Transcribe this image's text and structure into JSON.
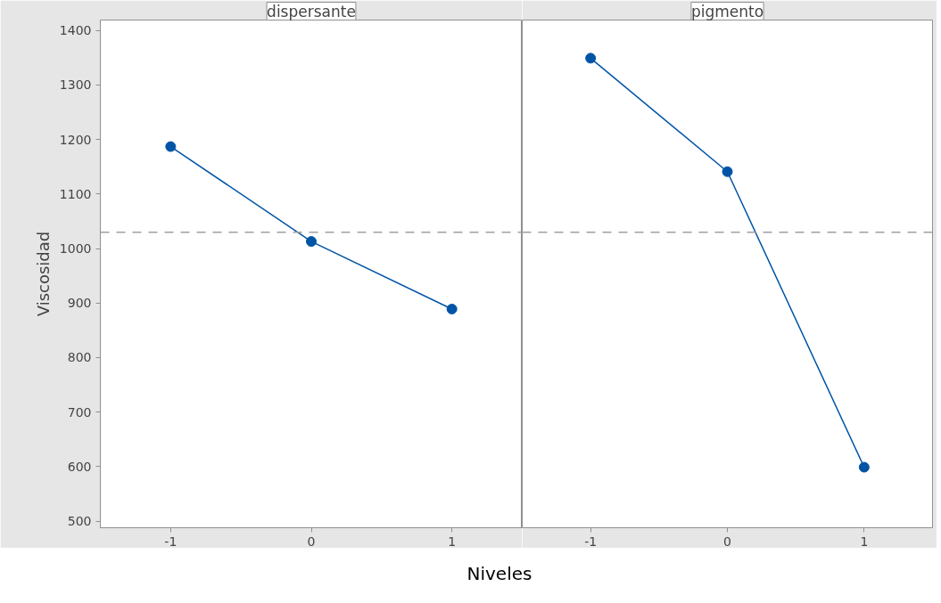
{
  "chart_data": [
    {
      "type": "line",
      "title": "dispersante",
      "ylabel": "Viscosidad",
      "xlabel": "Niveles",
      "x": [
        -1,
        0,
        1
      ],
      "series": [
        {
          "color": "#0054a6",
          "values": [
            1187,
            1013,
            889
          ]
        }
      ],
      "xlim": [
        -1.5,
        1.5
      ],
      "xticks": [
        -1,
        0,
        1
      ],
      "ylim": [
        488,
        1419
      ],
      "yticks": [
        500,
        600,
        700,
        800,
        900,
        1000,
        1100,
        1200,
        1300,
        1400
      ],
      "ref_lines": [
        {
          "axis": "y",
          "value": 1030,
          "color": "#a0a0a0",
          "line_style": "dashed"
        }
      ],
      "marker": "circle",
      "line_style": "solid",
      "grid": false
    },
    {
      "type": "line",
      "title": "pigmento",
      "x": [
        -1,
        0,
        1
      ],
      "series": [
        {
          "color": "#0054a6",
          "values": [
            1349,
            1141,
            599
          ]
        }
      ],
      "xlim": [
        -1.5,
        1.5
      ],
      "xticks": [
        -1,
        0,
        1
      ],
      "ylim": [
        488,
        1419
      ],
      "yticks": [
        500,
        600,
        700,
        800,
        900,
        1000,
        1100,
        1200,
        1300,
        1400
      ],
      "tick_labels": "x",
      "ref_lines": [
        {
          "axis": "y",
          "value": 1030,
          "color": "#a0a0a0",
          "line_style": "dashed"
        }
      ],
      "marker": "circle",
      "line_style": "solid",
      "grid": false
    }
  ]
}
